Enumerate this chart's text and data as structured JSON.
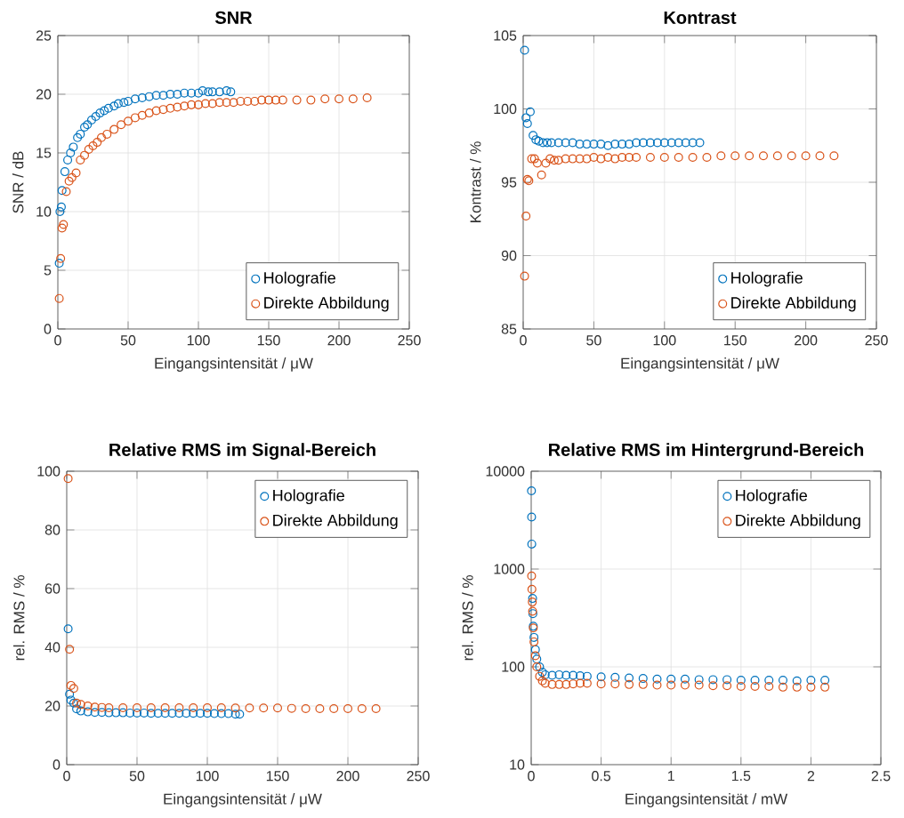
{
  "chart_data": [
    {
      "type": "scatter",
      "title": "SNR",
      "xlabel": "Eingangsintensität / μW",
      "ylabel": "SNR / dB",
      "xlim": [
        0,
        250
      ],
      "xticks": [
        0,
        50,
        100,
        150,
        200,
        250
      ],
      "ylim": [
        0,
        25
      ],
      "yticks": [
        0,
        5,
        10,
        15,
        20,
        25
      ],
      "grid": true,
      "legend": "bottom right",
      "marker": "circle",
      "series": [
        {
          "name": "Holografie",
          "color": "#0072bd",
          "x": [
            1,
            1.5,
            2.5,
            3,
            5,
            7,
            9,
            11,
            14,
            16,
            19,
            21,
            24,
            27,
            30,
            33,
            36,
            40,
            43,
            47,
            50,
            55,
            60,
            65,
            70,
            75,
            80,
            85,
            90,
            95,
            100,
            103,
            107,
            110,
            115,
            120,
            123
          ],
          "values": [
            5.6,
            10,
            10.4,
            11.8,
            13.4,
            14.4,
            15,
            15.5,
            16.3,
            16.6,
            17.2,
            17.4,
            17.8,
            18.1,
            18.4,
            18.6,
            18.8,
            19,
            19.2,
            19.3,
            19.4,
            19.6,
            19.7,
            19.8,
            19.9,
            19.9,
            20,
            20,
            20.1,
            20.1,
            20.1,
            20.3,
            20.2,
            20.2,
            20.2,
            20.3,
            20.2
          ]
        },
        {
          "name": "Direkte Abbildung",
          "color": "#d95319",
          "x": [
            1,
            2,
            3,
            4,
            6,
            8,
            10,
            13,
            16,
            19,
            22,
            25,
            28,
            31,
            35,
            40,
            45,
            50,
            55,
            60,
            65,
            70,
            75,
            80,
            85,
            90,
            95,
            100,
            105,
            110,
            115,
            120,
            125,
            130,
            135,
            140,
            145,
            150,
            155,
            160,
            170,
            180,
            190,
            200,
            210,
            220
          ],
          "values": [
            2.6,
            6,
            8.6,
            8.9,
            11.7,
            12.6,
            12.9,
            13.3,
            14.4,
            14.8,
            15.3,
            15.6,
            15.9,
            16.3,
            16.6,
            17,
            17.4,
            17.7,
            18,
            18.2,
            18.4,
            18.6,
            18.7,
            18.8,
            18.9,
            19,
            19.1,
            19.1,
            19.2,
            19.2,
            19.3,
            19.3,
            19.3,
            19.4,
            19.4,
            19.4,
            19.5,
            19.5,
            19.5,
            19.5,
            19.5,
            19.5,
            19.6,
            19.6,
            19.6,
            19.7
          ]
        }
      ]
    },
    {
      "type": "scatter",
      "title": "Kontrast",
      "xlabel": "Eingangsintensität / μW",
      "ylabel": "Kontrast / %",
      "xlim": [
        0,
        250
      ],
      "xticks": [
        0,
        50,
        100,
        150,
        200,
        250
      ],
      "ylim": [
        85,
        105
      ],
      "yticks": [
        85,
        90,
        95,
        100,
        105
      ],
      "grid": true,
      "legend": "bottom right",
      "marker": "circle",
      "series": [
        {
          "name": "Holografie",
          "color": "#0072bd",
          "x": [
            1,
            2,
            3,
            5,
            7,
            9,
            11,
            14,
            17,
            20,
            25,
            30,
            35,
            40,
            45,
            50,
            55,
            60,
            65,
            70,
            75,
            80,
            85,
            90,
            95,
            100,
            105,
            110,
            115,
            120,
            125
          ],
          "values": [
            104,
            99.4,
            99,
            99.8,
            98.2,
            97.9,
            97.8,
            97.7,
            97.7,
            97.7,
            97.7,
            97.7,
            97.7,
            97.6,
            97.6,
            97.6,
            97.6,
            97.5,
            97.6,
            97.6,
            97.6,
            97.7,
            97.7,
            97.7,
            97.7,
            97.7,
            97.7,
            97.7,
            97.7,
            97.7,
            97.7
          ]
        },
        {
          "name": "Direkte Abbildung",
          "color": "#d95319",
          "x": [
            1,
            2,
            3,
            4,
            6,
            8,
            10,
            13,
            16,
            19,
            22,
            25,
            30,
            35,
            40,
            45,
            50,
            55,
            60,
            65,
            70,
            75,
            80,
            90,
            100,
            110,
            120,
            130,
            140,
            150,
            160,
            170,
            180,
            190,
            200,
            210,
            220
          ],
          "values": [
            88.6,
            92.7,
            95.2,
            95.1,
            96.6,
            96.6,
            96.3,
            95.5,
            96.3,
            96.6,
            96.5,
            96.5,
            96.6,
            96.6,
            96.6,
            96.6,
            96.7,
            96.6,
            96.7,
            96.6,
            96.7,
            96.7,
            96.7,
            96.7,
            96.7,
            96.7,
            96.7,
            96.7,
            96.8,
            96.8,
            96.8,
            96.8,
            96.8,
            96.8,
            96.8,
            96.8,
            96.8
          ]
        }
      ]
    },
    {
      "type": "scatter",
      "title": "Relative RMS im Signal-Bereich",
      "xlabel": "Eingangsintensität / μW",
      "ylabel": "rel. RMS / %",
      "xlim": [
        0,
        250
      ],
      "xticks": [
        0,
        50,
        100,
        150,
        200,
        250
      ],
      "ylim": [
        0,
        100
      ],
      "yticks": [
        0,
        20,
        40,
        60,
        80,
        100
      ],
      "grid": true,
      "legend": "top right",
      "marker": "circle",
      "series": [
        {
          "name": "Holografie",
          "color": "#0072bd",
          "x": [
            1,
            2,
            3,
            5,
            7,
            10,
            15,
            20,
            25,
            30,
            35,
            40,
            45,
            50,
            55,
            60,
            65,
            70,
            75,
            80,
            85,
            90,
            95,
            100,
            105,
            110,
            115,
            120,
            123
          ],
          "values": [
            46.3,
            24,
            22,
            21,
            19,
            18.3,
            18,
            17.8,
            17.8,
            17.7,
            17.7,
            17.7,
            17.6,
            17.6,
            17.6,
            17.5,
            17.5,
            17.5,
            17.5,
            17.5,
            17.5,
            17.5,
            17.5,
            17.5,
            17.4,
            17.4,
            17.4,
            17.2,
            17.2
          ]
        },
        {
          "name": "Direkte Abbildung",
          "color": "#d95319",
          "x": [
            1,
            2,
            3,
            5,
            7,
            10,
            15,
            20,
            25,
            30,
            40,
            50,
            60,
            70,
            80,
            90,
            100,
            110,
            120,
            130,
            140,
            150,
            160,
            170,
            180,
            190,
            200,
            210,
            220
          ],
          "values": [
            97.5,
            39.3,
            27,
            26,
            21,
            20.5,
            20,
            19.6,
            19.5,
            19.4,
            19.4,
            19.4,
            19.4,
            19.4,
            19.4,
            19.4,
            19.4,
            19.4,
            19.3,
            19.3,
            19.3,
            19.3,
            19.2,
            19.1,
            19.1,
            19.1,
            19.1,
            19.1,
            19.1
          ]
        }
      ]
    },
    {
      "type": "scatter",
      "title": "Relative RMS im Hintergrund-Bereich",
      "xlabel": "Eingangsintensität / mW",
      "ylabel": "rel. RMS / %",
      "xlim": [
        0,
        2.5
      ],
      "xticks": [
        0,
        0.5,
        1,
        1.5,
        2,
        2.5
      ],
      "ylim": [
        10,
        10000
      ],
      "yticks": [
        10,
        100,
        1000,
        10000
      ],
      "log": "y",
      "grid": true,
      "legend": "top right",
      "marker": "circle",
      "series": [
        {
          "name": "Holografie",
          "color": "#0072bd",
          "x": [
            0.002,
            0.003,
            0.004,
            0.01,
            0.012,
            0.015,
            0.02,
            0.03,
            0.04,
            0.06,
            0.08,
            0.1,
            0.15,
            0.2,
            0.25,
            0.3,
            0.35,
            0.4,
            0.5,
            0.6,
            0.7,
            0.8,
            0.9,
            1,
            1.1,
            1.2,
            1.3,
            1.4,
            1.5,
            1.6,
            1.7,
            1.8,
            1.9,
            2,
            2.1
          ],
          "values": [
            6300,
            3400,
            1800,
            500,
            350,
            260,
            200,
            150,
            120,
            100,
            88,
            83,
            82,
            83,
            82,
            82,
            81,
            80,
            79,
            78,
            77,
            76,
            75,
            75,
            75,
            74,
            74,
            74,
            73,
            73,
            73,
            73,
            72,
            73,
            73
          ]
        },
        {
          "name": "Direkte Abbildung",
          "color": "#d95319",
          "x": [
            0.003,
            0.005,
            0.008,
            0.01,
            0.015,
            0.02,
            0.03,
            0.04,
            0.06,
            0.08,
            0.1,
            0.15,
            0.2,
            0.25,
            0.3,
            0.35,
            0.4,
            0.5,
            0.6,
            0.7,
            0.8,
            0.9,
            1,
            1.1,
            1.2,
            1.3,
            1.4,
            1.5,
            1.6,
            1.7,
            1.8,
            1.9,
            2,
            2.1
          ],
          "values": [
            850,
            620,
            460,
            370,
            250,
            180,
            130,
            100,
            80,
            72,
            68,
            66,
            66,
            66,
            67,
            68,
            68,
            67,
            67,
            66,
            66,
            65,
            65,
            65,
            65,
            64,
            64,
            63,
            63,
            63,
            62,
            62,
            62,
            62
          ]
        }
      ]
    }
  ]
}
